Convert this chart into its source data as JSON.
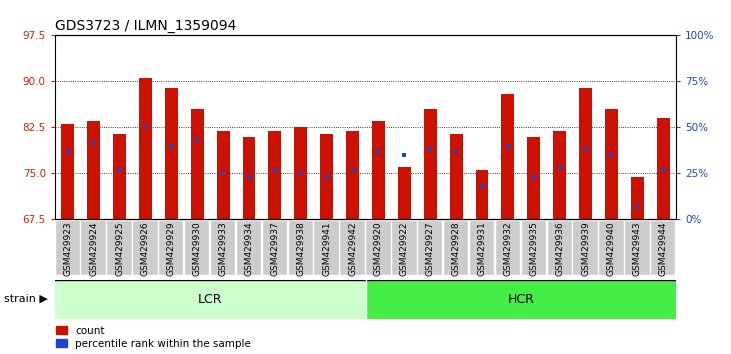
{
  "title": "GDS3723 / ILMN_1359094",
  "samples": [
    "GSM429923",
    "GSM429924",
    "GSM429925",
    "GSM429926",
    "GSM429929",
    "GSM429930",
    "GSM429933",
    "GSM429934",
    "GSM429937",
    "GSM429938",
    "GSM429941",
    "GSM429942",
    "GSM429920",
    "GSM429922",
    "GSM429927",
    "GSM429928",
    "GSM429931",
    "GSM429932",
    "GSM429935",
    "GSM429936",
    "GSM429939",
    "GSM429940",
    "GSM429943",
    "GSM429944"
  ],
  "counts": [
    83.0,
    83.5,
    81.5,
    90.5,
    89.0,
    85.5,
    82.0,
    81.0,
    82.0,
    82.5,
    81.5,
    82.0,
    83.5,
    76.0,
    85.5,
    81.5,
    75.5,
    88.0,
    81.0,
    82.0,
    89.0,
    85.5,
    74.5,
    84.0
  ],
  "percentile_ranks": [
    78.5,
    80.0,
    75.5,
    82.5,
    79.5,
    80.5,
    75.0,
    74.5,
    75.5,
    75.0,
    74.5,
    75.5,
    78.5,
    78.0,
    79.0,
    78.5,
    73.0,
    79.5,
    74.5,
    76.0,
    79.0,
    78.0,
    69.5,
    75.5
  ],
  "groups": [
    {
      "label": "LCR",
      "start": 0,
      "end": 11,
      "color": "#ccffcc"
    },
    {
      "label": "HCR",
      "start": 12,
      "end": 23,
      "color": "#44ee44"
    }
  ],
  "ylim": [
    67.5,
    97.5
  ],
  "yticks": [
    67.5,
    75.0,
    82.5,
    90.0,
    97.5
  ],
  "right_ylim": [
    0,
    100
  ],
  "right_yticks": [
    0,
    25,
    50,
    75,
    100
  ],
  "bar_color": "#cc1100",
  "marker_color": "#2244cc",
  "bg_color": "#ffffff",
  "plot_bg_color": "#ffffff",
  "tick_label_color_left": "#cc2200",
  "tick_label_color_right": "#2244cc",
  "title_fontsize": 10,
  "tick_fontsize": 7.5,
  "bar_width": 0.5,
  "xtick_bg": "#cccccc"
}
